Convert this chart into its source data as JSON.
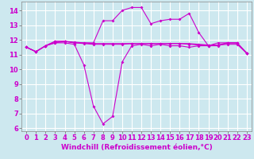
{
  "x": [
    0,
    1,
    2,
    3,
    4,
    5,
    6,
    7,
    8,
    9,
    10,
    11,
    12,
    13,
    14,
    15,
    16,
    17,
    18,
    19,
    20,
    21,
    22,
    23
  ],
  "line1": [
    11.5,
    11.2,
    11.6,
    11.8,
    11.8,
    11.7,
    10.3,
    7.5,
    6.3,
    6.8,
    10.5,
    11.6,
    11.7,
    11.6,
    11.7,
    11.6,
    11.6,
    11.5,
    11.6,
    11.6,
    11.6,
    11.8,
    11.8,
    11.1
  ],
  "line2": [
    11.5,
    11.2,
    11.6,
    11.8,
    11.9,
    11.8,
    11.75,
    11.7,
    11.7,
    11.7,
    11.7,
    11.75,
    11.75,
    11.75,
    11.75,
    11.75,
    11.75,
    11.7,
    11.65,
    11.65,
    11.65,
    11.7,
    11.7,
    11.1
  ],
  "line3": [
    11.5,
    11.2,
    11.6,
    11.9,
    11.9,
    11.85,
    11.8,
    11.75,
    11.75,
    11.75,
    11.75,
    11.75,
    11.75,
    11.75,
    11.75,
    11.75,
    11.75,
    11.75,
    11.7,
    11.65,
    11.65,
    11.8,
    11.8,
    11.1
  ],
  "line4": [
    11.5,
    11.2,
    11.6,
    11.9,
    11.9,
    11.8,
    11.8,
    11.8,
    13.3,
    13.3,
    14.0,
    14.2,
    14.2,
    13.1,
    13.3,
    13.4,
    13.4,
    13.8,
    12.5,
    11.6,
    11.8,
    11.8,
    11.8,
    11.1
  ],
  "bg_color": "#cde8ef",
  "grid_color": "#ffffff",
  "line_color": "#cc00cc",
  "markersize": 2.0,
  "linewidth": 0.8,
  "xlabel": "Windchill (Refroidissement éolien,°C)",
  "xlabel_fontsize": 6.5,
  "tick_fontsize": 6,
  "ylim": [
    5.8,
    14.6
  ],
  "xlim": [
    -0.5,
    23.5
  ],
  "yticks": [
    6,
    7,
    8,
    9,
    10,
    11,
    12,
    13,
    14
  ],
  "xticks": [
    0,
    1,
    2,
    3,
    4,
    5,
    6,
    7,
    8,
    9,
    10,
    11,
    12,
    13,
    14,
    15,
    16,
    17,
    18,
    19,
    20,
    21,
    22,
    23
  ]
}
